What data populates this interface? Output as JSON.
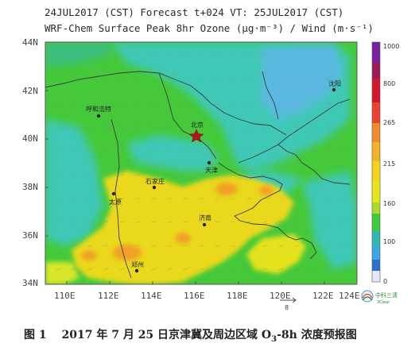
{
  "header": {
    "line1": "24JUL2017 (CST) Forecast t+024 VT: 25JUL2017 (CST)",
    "line2": "WRF-Chem Surface Peak 8hr Ozone (μg·m⁻³) / Wind (m·s⁻¹)"
  },
  "axes": {
    "lat_labels": [
      "44N",
      "42N",
      "40N",
      "38N",
      "36N",
      "34N"
    ],
    "lon_labels": [
      "110E",
      "112E",
      "114E",
      "116E",
      "118E",
      "120E",
      "122E",
      "124E"
    ]
  },
  "colorbar": {
    "labels": [
      "1000",
      "800",
      "265",
      "215",
      "160",
      "100",
      "0"
    ],
    "colors": [
      "#7a1fa0",
      "#c8102e",
      "#e9432f",
      "#f08a2c",
      "#f5d31b",
      "#e8e51c",
      "#3fca3f",
      "#2fb8b0",
      "#3aa6e8",
      "#2d6fd0",
      "#e6e6ff"
    ]
  },
  "cities": {
    "beijing": "北京",
    "tianjin": "天津",
    "shijiazhuang": "石家庄",
    "taiyuan": "太原",
    "jinan": "济南",
    "zhengzhou": "郑州",
    "hohhot": "呼和浩特",
    "shenyang": "沈阳"
  },
  "wind_reference": "8",
  "logo": {
    "name": "中科三清",
    "subtitle": "3Clear"
  },
  "caption": {
    "prefix": "图 1　 2017 年 7 月 25 日京津冀及周边区域 O",
    "sub": "3",
    "suffix": "-8h 浓度预报图"
  }
}
